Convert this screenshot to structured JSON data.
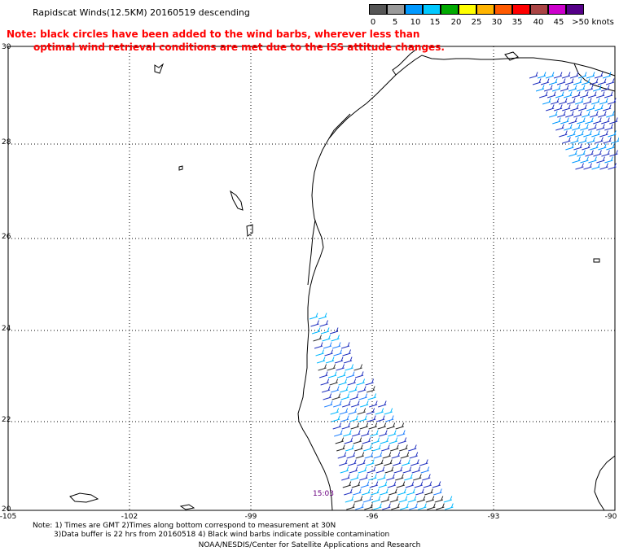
{
  "title": "Rapidscat Winds(12.5KM) 20160519 descending",
  "note": {
    "line1": "Note: black circles have been added to the wind barbs, wherever less than",
    "line2": "optimal wind retrieval conditions are met due to the ISS attitude changes."
  },
  "legend": {
    "colors": [
      "#555555",
      "#9a9a9a",
      "#0099ff",
      "#00c8ff",
      "#00aa00",
      "#ffff00",
      "#ffb400",
      "#ff5a00",
      "#ff0000",
      "#aa4444",
      "#cc00cc",
      "#550088"
    ],
    "labels": [
      "0",
      "5",
      "10",
      "15",
      "20",
      "25",
      "30",
      "35",
      "40",
      "45",
      ">50 knots"
    ]
  },
  "map": {
    "lon_range": [
      -105,
      -90
    ],
    "lat_range": [
      20,
      30
    ],
    "lon_ticks": [
      "-105",
      "-102",
      "-99",
      "-96",
      "-93",
      "-90"
    ],
    "lat_ticks": [
      "30",
      "28",
      "26",
      "24",
      "22",
      "20"
    ],
    "time_label": "15:03"
  },
  "footer": {
    "line1": "Note: 1) Times are GMT 2)Times along bottom correspond to measurement at 30N",
    "line2": "3)Data buffer is 22 hrs from 20160518 4) Black wind barbs indicate possible contamination",
    "line3": "NOAA/NESDIS/Center for Satellite Applications and Research"
  }
}
